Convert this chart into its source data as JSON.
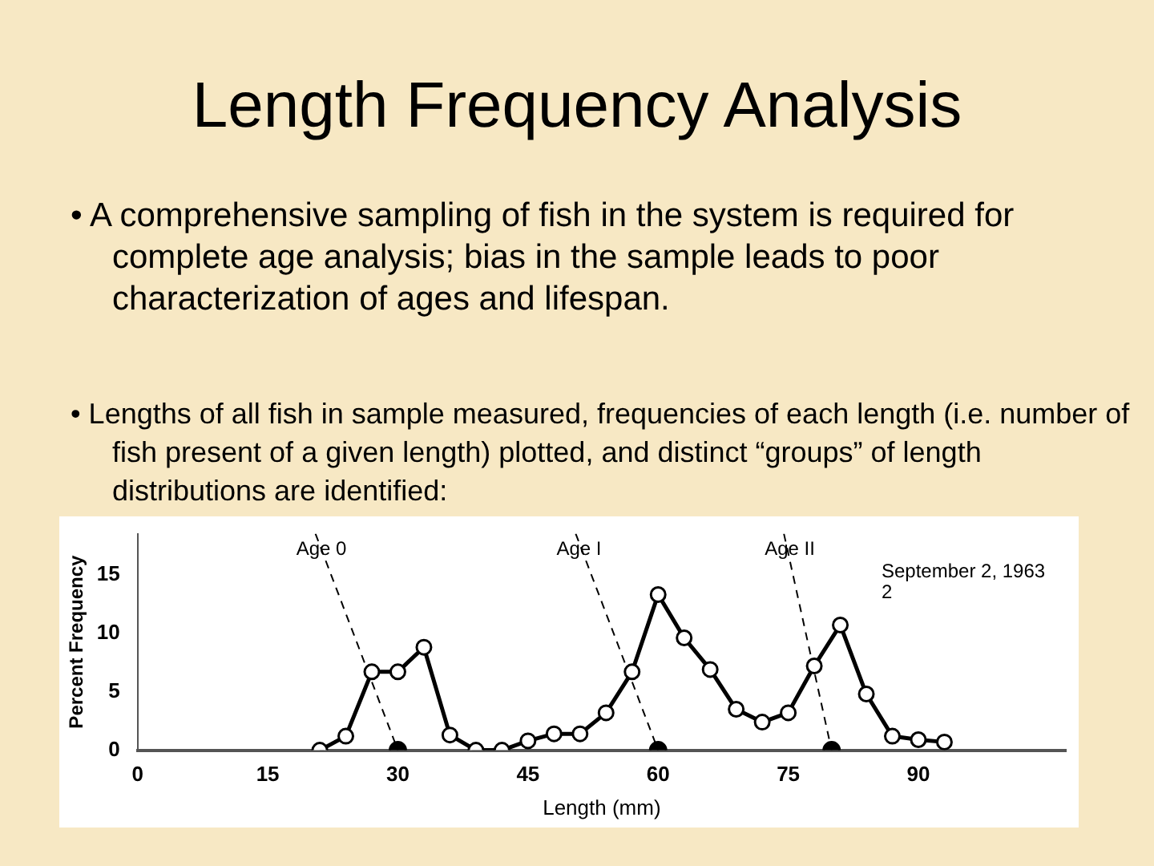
{
  "chart_data": {
    "type": "line",
    "title": "Length Frequency Analysis",
    "subtitle": "• A comprehensive sampling of fish in the system is required for complete age analysis; bias in the sample leads to poor characterization of ages and lifespan.",
    "annotations": [
      "• Lengths of all fish in sample measured, frequencies of each length (i.e. number of fish present of a given length) plotted, and distinct “groups” of length distributions are identified:",
      "September 2, 1963",
      "2"
    ],
    "xlabel": "Length (mm)",
    "ylabel": "Percent Frequency",
    "xlim": [
      0,
      107
    ],
    "xticks": [
      0,
      15,
      30,
      45,
      60,
      75,
      90
    ],
    "ylim": [
      0,
      18.5
    ],
    "yticks": [
      0,
      5,
      10,
      15
    ],
    "grid": false,
    "legend": false,
    "series": [
      {
        "color": "#000000",
        "marker": "circle",
        "line_style": "solid",
        "x": [
          21,
          24,
          27,
          30,
          33,
          36,
          39,
          42,
          45,
          48,
          51,
          54,
          57,
          60,
          63,
          66,
          69,
          72,
          75,
          78,
          81,
          84,
          87,
          90,
          93
        ],
        "values": [
          0,
          1.2,
          6.7,
          6.7,
          8.8,
          1.3,
          0,
          0,
          0.8,
          1.4,
          1.4,
          3.2,
          6.7,
          13.3,
          9.6,
          6.9,
          3.5,
          2.4,
          3.2,
          7.2,
          10.7,
          4.8,
          1.2,
          0.9,
          0.7
        ]
      },
      {
        "type": "scatter",
        "color": "#000000",
        "marker": "circle",
        "x": [
          30,
          60,
          80
        ],
        "values": [
          0,
          0,
          0
        ]
      },
      {
        "type": "line",
        "name": "Age 0",
        "color": "#000000",
        "marker": "none",
        "line_style": "dashed",
        "x": [
          20.5,
          30
        ],
        "values": [
          18.5,
          0
        ]
      },
      {
        "type": "line",
        "name": "Age I",
        "color": "#000000",
        "marker": "none",
        "line_style": "dashed",
        "x": [
          50.5,
          60
        ],
        "values": [
          18.5,
          0
        ]
      },
      {
        "type": "line",
        "name": "Age II",
        "color": "#000000",
        "marker": "none",
        "line_style": "dashed",
        "x": [
          74.5,
          80
        ],
        "values": [
          18.5,
          0
        ]
      }
    ]
  }
}
